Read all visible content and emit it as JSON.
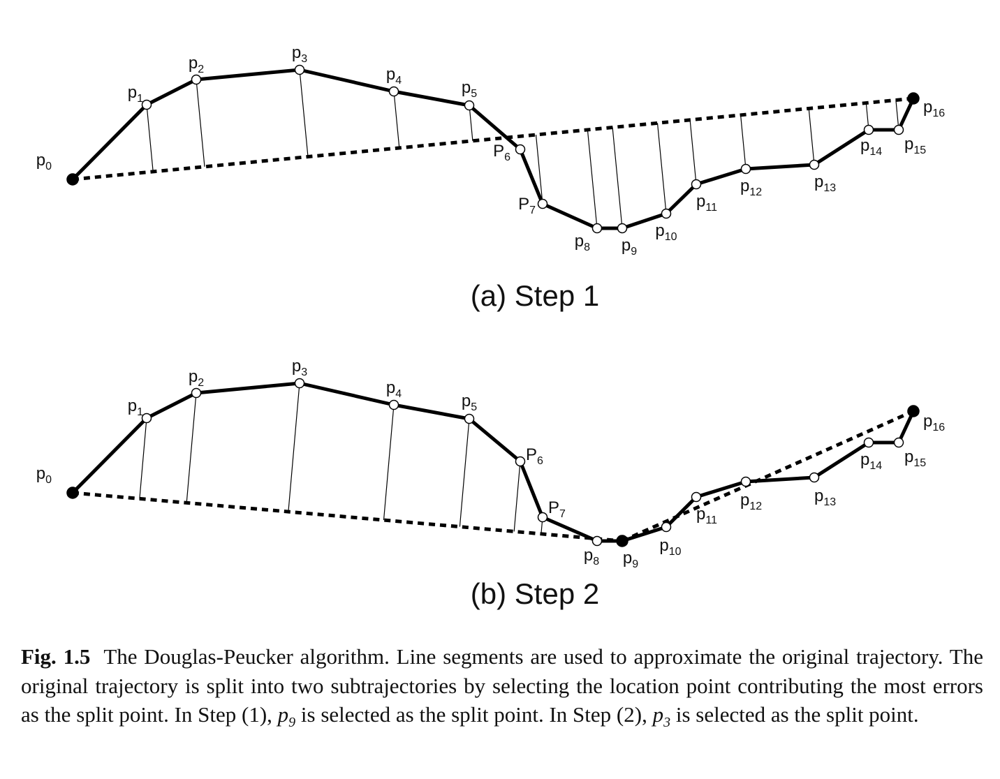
{
  "figure": {
    "panels": [
      {
        "id": "a",
        "step_label": "(a) Step 1",
        "points": [
          {
            "base": "p",
            "sub": "0",
            "solid": true
          },
          {
            "base": "p",
            "sub": "1"
          },
          {
            "base": "p",
            "sub": "2"
          },
          {
            "base": "p",
            "sub": "3"
          },
          {
            "base": "p",
            "sub": "4"
          },
          {
            "base": "p",
            "sub": "5"
          },
          {
            "base": "P",
            "sub": "6"
          },
          {
            "base": "P",
            "sub": "7"
          },
          {
            "base": "p",
            "sub": "8"
          },
          {
            "base": "p",
            "sub": "9"
          },
          {
            "base": "p",
            "sub": "10"
          },
          {
            "base": "p",
            "sub": "11"
          },
          {
            "base": "p",
            "sub": "12"
          },
          {
            "base": "p",
            "sub": "13"
          },
          {
            "base": "p",
            "sub": "14"
          },
          {
            "base": "p",
            "sub": "15"
          },
          {
            "base": "p",
            "sub": "16",
            "solid": true
          }
        ]
      },
      {
        "id": "b",
        "step_label": "(b) Step 2",
        "points": [
          {
            "base": "p",
            "sub": "0",
            "solid": true
          },
          {
            "base": "p",
            "sub": "1"
          },
          {
            "base": "p",
            "sub": "2"
          },
          {
            "base": "p",
            "sub": "3"
          },
          {
            "base": "p",
            "sub": "4"
          },
          {
            "base": "p",
            "sub": "5"
          },
          {
            "base": "P",
            "sub": "6"
          },
          {
            "base": "P",
            "sub": "7"
          },
          {
            "base": "p",
            "sub": "8"
          },
          {
            "base": "p",
            "sub": "9",
            "solid": true
          },
          {
            "base": "p",
            "sub": "10"
          },
          {
            "base": "p",
            "sub": "11"
          },
          {
            "base": "p",
            "sub": "12"
          },
          {
            "base": "p",
            "sub": "13"
          },
          {
            "base": "p",
            "sub": "14"
          },
          {
            "base": "p",
            "sub": "15"
          },
          {
            "base": "p",
            "sub": "16",
            "solid": true
          }
        ]
      }
    ]
  },
  "caption": {
    "fig_label": "Fig. 1.5",
    "text_1": "The Douglas-Peucker algorithm. Line segments are used to approximate the original trajectory. The original trajectory is split into two subtrajectories by selecting the location point contributing the most errors as the split point. In Step (1), ",
    "var_1_base": "p",
    "var_1_sub": "9",
    "text_2": " is selected as the split point. In Step (2), ",
    "var_2_base": "p",
    "var_2_sub": "3",
    "text_3": " is selected as the split point."
  }
}
